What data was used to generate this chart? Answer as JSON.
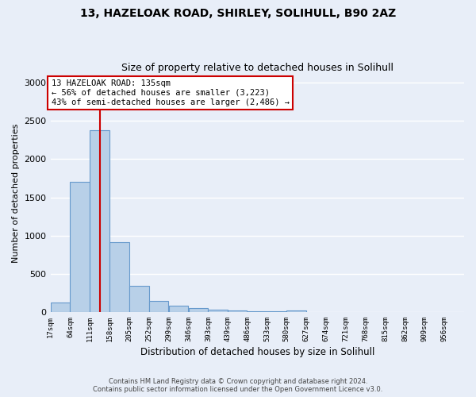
{
  "title1": "13, HAZELOAK ROAD, SHIRLEY, SOLIHULL, B90 2AZ",
  "title2": "Size of property relative to detached houses in Solihull",
  "xlabel": "Distribution of detached houses by size in Solihull",
  "ylabel": "Number of detached properties",
  "bin_labels": [
    "17sqm",
    "64sqm",
    "111sqm",
    "158sqm",
    "205sqm",
    "252sqm",
    "299sqm",
    "346sqm",
    "393sqm",
    "439sqm",
    "486sqm",
    "533sqm",
    "580sqm",
    "627sqm",
    "674sqm",
    "721sqm",
    "768sqm",
    "815sqm",
    "862sqm",
    "909sqm",
    "956sqm"
  ],
  "bin_edges": [
    17,
    64,
    111,
    158,
    205,
    252,
    299,
    346,
    393,
    439,
    486,
    533,
    580,
    627,
    674,
    721,
    768,
    815,
    862,
    909,
    956
  ],
  "bar_values": [
    120,
    1700,
    2380,
    910,
    345,
    140,
    80,
    50,
    35,
    25,
    15,
    10,
    25,
    0,
    0,
    0,
    0,
    0,
    0,
    0
  ],
  "bar_color": "#b8d0e8",
  "bar_edge_color": "#6699cc",
  "property_size": 135,
  "red_line_color": "#cc0000",
  "annotation_text": "13 HAZELOAK ROAD: 135sqm\n← 56% of detached houses are smaller (3,223)\n43% of semi-detached houses are larger (2,486) →",
  "annotation_box_color": "#ffffff",
  "annotation_box_edge": "#cc0000",
  "ylim": [
    0,
    3100
  ],
  "yticks": [
    0,
    500,
    1000,
    1500,
    2000,
    2500,
    3000
  ],
  "footer1": "Contains HM Land Registry data © Crown copyright and database right 2024.",
  "footer2": "Contains public sector information licensed under the Open Government Licence v3.0.",
  "background_color": "#e8eef8",
  "grid_color": "#ffffff",
  "title1_fontsize": 10,
  "title2_fontsize": 9
}
